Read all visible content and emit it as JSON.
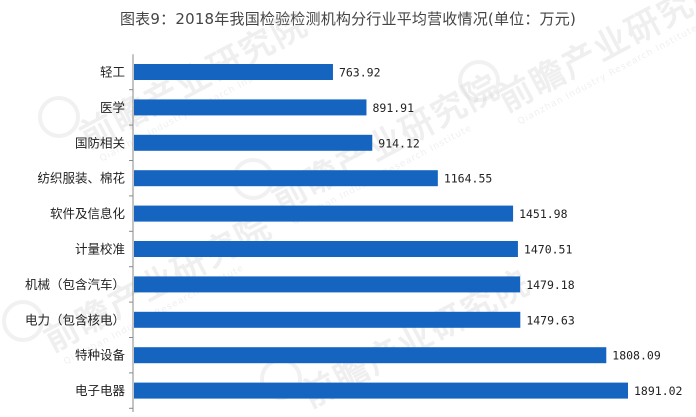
{
  "chart_data": {
    "type": "bar",
    "orientation": "horizontal",
    "title": "图表9：2018年我国检验检测机构分行业平均营收情况(单位：万元)",
    "categories": [
      "轻工",
      "医学",
      "国防相关",
      "纺织服装、棉花",
      "软件及信息化",
      "计量校准",
      "机械（包含汽车）",
      "电力（包含核电）",
      "特种设备",
      "电子电器"
    ],
    "values": [
      763.92,
      891.91,
      914.12,
      1164.55,
      1451.98,
      1470.51,
      1479.18,
      1479.63,
      1808.09,
      1891.02
    ],
    "value_labels": [
      "763.92",
      "891.91",
      "914.12",
      "1164.55",
      "1451.98",
      "1470.51",
      "1479.18",
      "1479.63",
      "1808.09",
      "1891.02"
    ],
    "xlim": [
      0,
      1891.02
    ],
    "grid": false,
    "legend": "none",
    "bar_color": "#1565c0"
  },
  "watermark": {
    "text": "前瞻产业研究院",
    "subtext": "Qianzhan Industry Research Institute"
  }
}
